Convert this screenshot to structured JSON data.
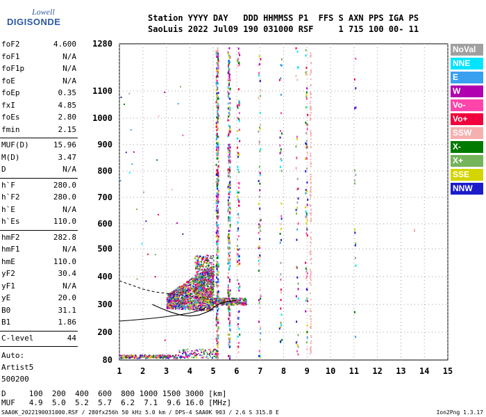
{
  "logo": {
    "line1": "Lowell",
    "line2": "DIGISONDE"
  },
  "header": {
    "line1": "Station YYYY DAY   DDD HHMMSS P1  FFS S AXN PPS IGA PS",
    "line2": "SaoLuis 2022 Jul09 190 031000 RSF     1 715 100 00- 11"
  },
  "params": [
    {
      "k": "foF2",
      "v": "4.600"
    },
    {
      "k": "foF1",
      "v": "N/A"
    },
    {
      "k": "foF1p",
      "v": "N/A"
    },
    {
      "k": "foE",
      "v": "N/A"
    },
    {
      "k": "foEp",
      "v": "0.35"
    },
    {
      "k": "fxI",
      "v": "4.85"
    },
    {
      "k": "foEs",
      "v": "2.80"
    },
    {
      "k": "fmin",
      "v": "2.15"
    },
    {
      "k": "MUF(D)",
      "v": "15.96"
    },
    {
      "k": "M(D)",
      "v": "3.47"
    },
    {
      "k": "D",
      "v": "N/A"
    },
    {
      "k": "h`F",
      "v": "280.0"
    },
    {
      "k": "h`F2",
      "v": "280.0"
    },
    {
      "k": "h`E",
      "v": "N/A"
    },
    {
      "k": "h`Es",
      "v": "110.0"
    },
    {
      "k": "hmF2",
      "v": "282.8"
    },
    {
      "k": "hmF1",
      "v": "N/A"
    },
    {
      "k": "hmE",
      "v": "110.0"
    },
    {
      "k": "yF2",
      "v": "30.4"
    },
    {
      "k": "yF1",
      "v": "N/A"
    },
    {
      "k": "yE",
      "v": "20.0"
    },
    {
      "k": "B0",
      "v": "31.1"
    },
    {
      "k": "B1",
      "v": "1.86"
    },
    {
      "k": "C-level",
      "v": "44"
    }
  ],
  "notes": [
    "Auto:",
    "Artist5",
    "500200"
  ],
  "legend": [
    {
      "label": "NoVal",
      "color": "#a0a0a0"
    },
    {
      "label": "NNE",
      "color": "#00e5ff"
    },
    {
      "label": "E",
      "color": "#39a0f0"
    },
    {
      "label": "W",
      "color": "#b000b0"
    },
    {
      "label": "Vo-",
      "color": "#ff44aa"
    },
    {
      "label": "Vo+",
      "color": "#f0003c"
    },
    {
      "label": "SSW",
      "color": "#f5b0b0"
    },
    {
      "label": "X-",
      "color": "#007a00"
    },
    {
      "label": "X+",
      "color": "#74b45a"
    },
    {
      "label": "SSE",
      "color": "#d4d400"
    },
    {
      "label": "NNW",
      "color": "#1c1ccc"
    }
  ],
  "footer": {
    "d_row": "D     100  200  400  600  800 1000 1500 3000 [km]",
    "muf_row": "MUF   4.9  5.0  5.2  5.7  6.2  7.1  9.6 16.0 [MHz]",
    "file": "SAA0K_2022190031000.RSF / 280fx256h 50 kHz 5.0 km / DPS-4 SAA0K 903 / 2.6 S 315.8 E",
    "version": "Ion2Png 1.3.17"
  },
  "chart_data": {
    "type": "scatter",
    "x_ticks": [
      "1",
      "2",
      "3",
      "4",
      "5",
      "6",
      "7",
      "8",
      "9",
      "10",
      "11",
      "12",
      "13",
      "14",
      "15"
    ],
    "y_ticks": [
      "80",
      "200",
      "300",
      "400",
      "500",
      "600",
      "700",
      "800",
      "900",
      "1000",
      "1100",
      "1280"
    ],
    "xlim": [
      1,
      15
    ],
    "ylim": [
      80,
      1280
    ],
    "grid": true,
    "legend_position": "right",
    "traces": {
      "trace_F_layer": [
        [
          2.4,
          300
        ],
        [
          2.8,
          285
        ],
        [
          3.2,
          272
        ],
        [
          3.6,
          262
        ],
        [
          4.0,
          258
        ],
        [
          4.4,
          262
        ],
        [
          4.8,
          275
        ],
        [
          5.2,
          300
        ],
        [
          5.6,
          310
        ],
        [
          6.0,
          315
        ]
      ],
      "dashed_profile": [
        [
          1.0,
          385
        ],
        [
          1.5,
          370
        ],
        [
          2.0,
          355
        ],
        [
          2.5,
          345
        ],
        [
          3.0,
          340
        ],
        [
          3.5,
          335
        ],
        [
          4.0,
          330
        ],
        [
          4.5,
          325
        ]
      ],
      "solid_profile": [
        [
          1.0,
          240
        ],
        [
          1.5,
          243
        ],
        [
          2.0,
          247
        ],
        [
          2.5,
          251
        ],
        [
          3.0,
          256
        ],
        [
          3.5,
          262
        ],
        [
          4.0,
          269
        ],
        [
          4.5,
          280
        ],
        [
          4.7,
          290
        ]
      ]
    }
  }
}
